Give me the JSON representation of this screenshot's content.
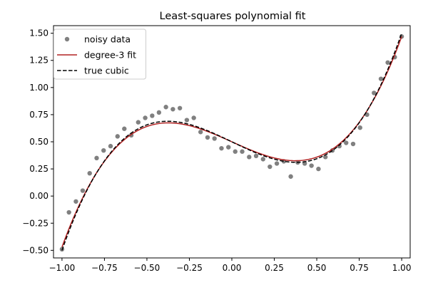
{
  "chart_data": {
    "type": "scatter",
    "title": "Least-squares polynomial fit",
    "xlabel": "",
    "ylabel": "",
    "xlim": [
      -1.05,
      1.05
    ],
    "ylim": [
      -0.57,
      1.57
    ],
    "xticks": [
      -1.0,
      -0.75,
      -0.5,
      -0.25,
      0.0,
      0.25,
      0.5,
      0.75,
      1.0
    ],
    "xtick_labels": [
      "−1.00",
      "−0.75",
      "−0.50",
      "−0.25",
      "0.00",
      "0.25",
      "0.50",
      "0.75",
      "1.00"
    ],
    "yticks": [
      -0.5,
      -0.25,
      0.0,
      0.25,
      0.5,
      0.75,
      1.0,
      1.25,
      1.5
    ],
    "ytick_labels": [
      "−0.50",
      "−0.25",
      "0.00",
      "0.25",
      "0.50",
      "0.75",
      "1.00",
      "1.25",
      "1.50"
    ],
    "grid": false,
    "legend_position": "top-left",
    "legend": [
      {
        "label": "noisy data",
        "kind": "scatter",
        "color": "#808080"
      },
      {
        "label": "degree-3 fit",
        "kind": "line",
        "color": "#b22222"
      },
      {
        "label": "true cubic",
        "kind": "dashed",
        "color": "#000000"
      }
    ],
    "series": [
      {
        "name": "noisy data",
        "kind": "scatter",
        "color": "#808080",
        "x": [
          -1.0,
          -0.959,
          -0.918,
          -0.878,
          -0.837,
          -0.796,
          -0.755,
          -0.714,
          -0.673,
          -0.633,
          -0.592,
          -0.551,
          -0.51,
          -0.469,
          -0.429,
          -0.388,
          -0.347,
          -0.306,
          -0.265,
          -0.224,
          -0.184,
          -0.143,
          -0.102,
          -0.061,
          -0.02,
          0.02,
          0.061,
          0.102,
          0.143,
          0.184,
          0.224,
          0.265,
          0.306,
          0.347,
          0.388,
          0.429,
          0.469,
          0.51,
          0.551,
          0.592,
          0.633,
          0.673,
          0.714,
          0.755,
          0.796,
          0.837,
          0.878,
          0.918,
          0.959,
          1.0
        ],
        "y": [
          -0.49,
          -0.15,
          -0.05,
          0.05,
          0.21,
          0.35,
          0.42,
          0.46,
          0.55,
          0.62,
          0.56,
          0.68,
          0.72,
          0.74,
          0.77,
          0.82,
          0.8,
          0.81,
          0.7,
          0.72,
          0.59,
          0.54,
          0.53,
          0.44,
          0.45,
          0.41,
          0.41,
          0.36,
          0.37,
          0.34,
          0.27,
          0.3,
          0.32,
          0.18,
          0.31,
          0.3,
          0.28,
          0.25,
          0.36,
          0.42,
          0.46,
          0.49,
          0.48,
          0.63,
          0.75,
          0.95,
          1.08,
          1.23,
          1.28,
          1.47
        ]
      },
      {
        "name": "degree-3 fit",
        "kind": "line",
        "color": "#b22222",
        "coefficients": [
          0.5,
          -0.7,
          0.0,
          1.67
        ]
      },
      {
        "name": "true cubic",
        "kind": "dashed",
        "color": "#000000",
        "coefficients": [
          0.5,
          -0.75,
          0.0,
          1.75
        ]
      }
    ]
  }
}
